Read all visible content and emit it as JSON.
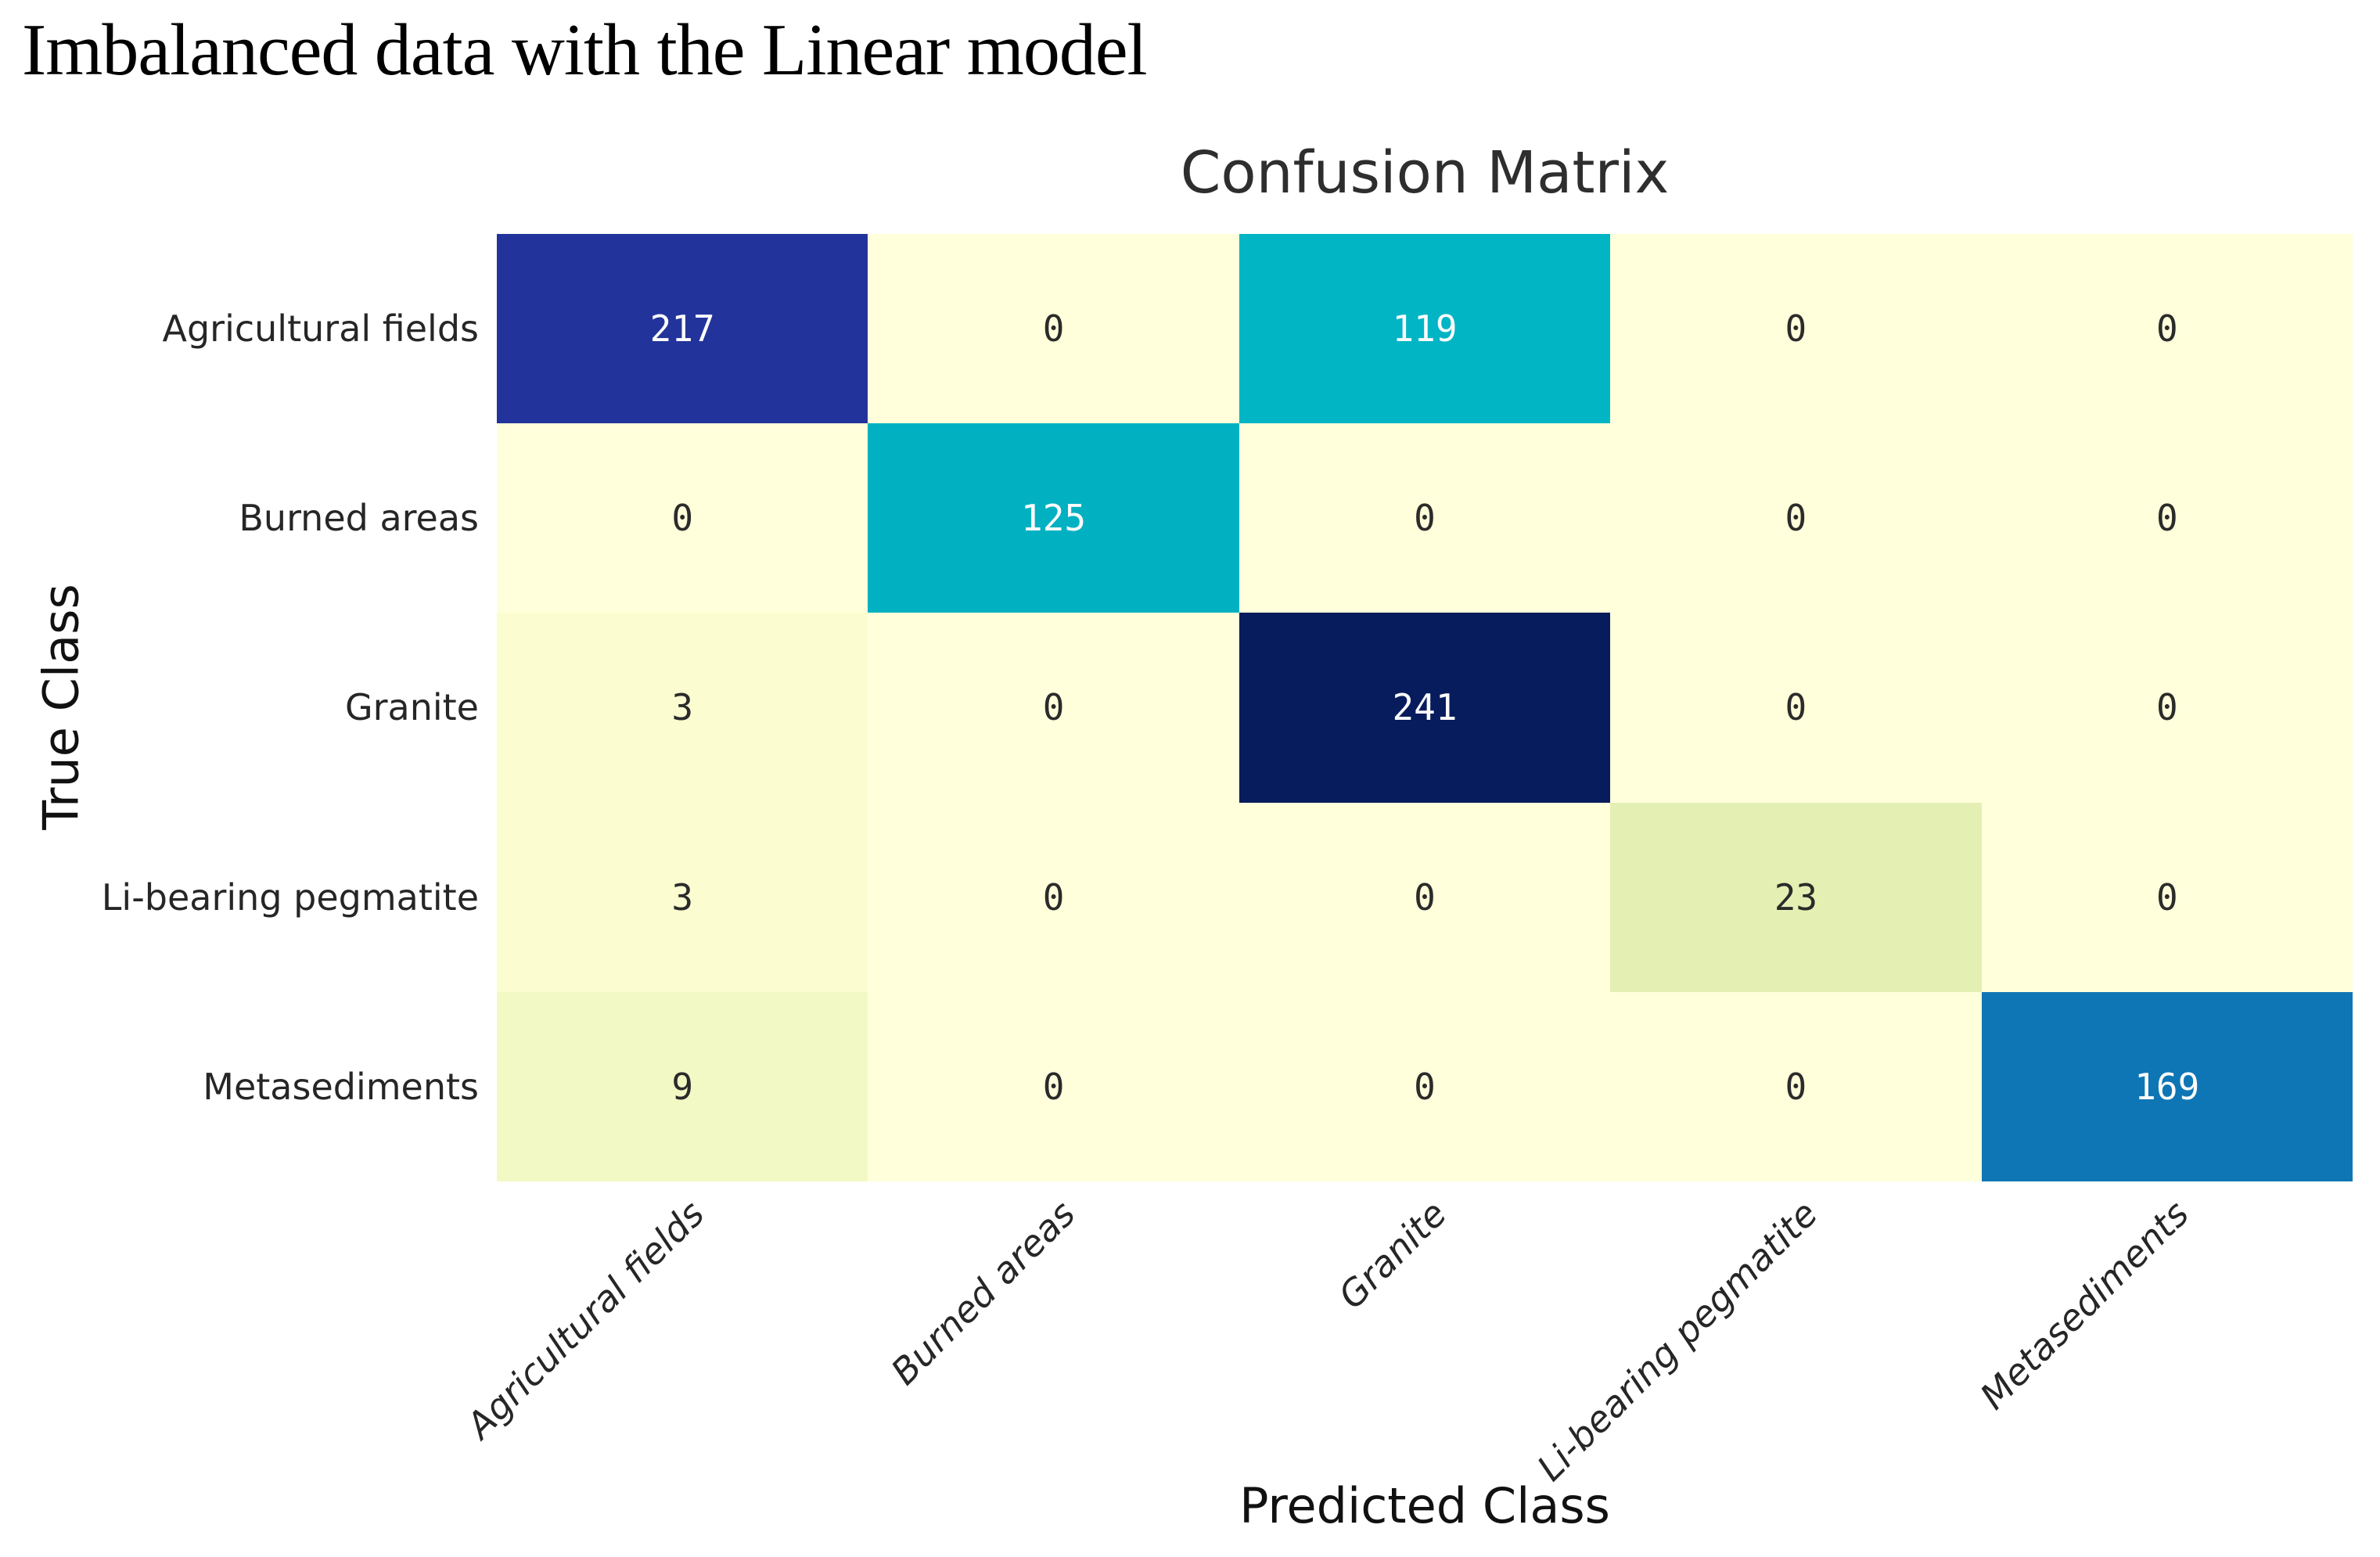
{
  "page": {
    "title": "Imbalanced data with the Linear model"
  },
  "chart_data": {
    "type": "heatmap",
    "title": "Confusion Matrix",
    "xlabel": "Predicted Class",
    "ylabel": "True Class",
    "colormap": "YlGnBu",
    "grid": false,
    "legend_position": "none",
    "x_tick_labels": [
      "Agricultural fields",
      "Burned areas",
      "Granite",
      "Li-bearing pegmatite",
      "Metasediments"
    ],
    "y_tick_labels": [
      "Agricultural fields",
      "Burned areas",
      "Granite",
      "Li-bearing pegmatite",
      "Metasediments"
    ],
    "matrix": [
      [
        217,
        0,
        119,
        0,
        0
      ],
      [
        0,
        125,
        0,
        0,
        0
      ],
      [
        3,
        0,
        241,
        0,
        0
      ],
      [
        3,
        0,
        0,
        23,
        0
      ],
      [
        9,
        0,
        0,
        0,
        169
      ]
    ],
    "cell_colors": [
      [
        "#22349b",
        "#ffffdb",
        "#01b5c5",
        "#ffffdb",
        "#ffffdb"
      ],
      [
        "#ffffdb",
        "#01b1c2",
        "#ffffdb",
        "#ffffdb",
        "#ffffdb"
      ],
      [
        "#fbfdd1",
        "#ffffdb",
        "#061c5c",
        "#ffffdb",
        "#ffffdb"
      ],
      [
        "#fbfdd1",
        "#ffffdb",
        "#ffffdb",
        "#e4f0b3",
        "#ffffdb"
      ],
      [
        "#f3f9c5",
        "#ffffdb",
        "#ffffdb",
        "#ffffdb",
        "#0e76b4"
      ]
    ],
    "cell_text_colors": [
      [
        "#fbfbfb",
        "#2b2b2b",
        "#fbfbfb",
        "#2b2b2b",
        "#2b2b2b"
      ],
      [
        "#2b2b2b",
        "#fbfbfb",
        "#2b2b2b",
        "#2b2b2b",
        "#2b2b2b"
      ],
      [
        "#2b2b2b",
        "#2b2b2b",
        "#fbfbfb",
        "#2b2b2b",
        "#2b2b2b"
      ],
      [
        "#2b2b2b",
        "#2b2b2b",
        "#2b2b2b",
        "#2b2b2b",
        "#2b2b2b"
      ],
      [
        "#2b2b2b",
        "#2b2b2b",
        "#2b2b2b",
        "#2b2b2b",
        "#fbfbfb"
      ]
    ]
  }
}
